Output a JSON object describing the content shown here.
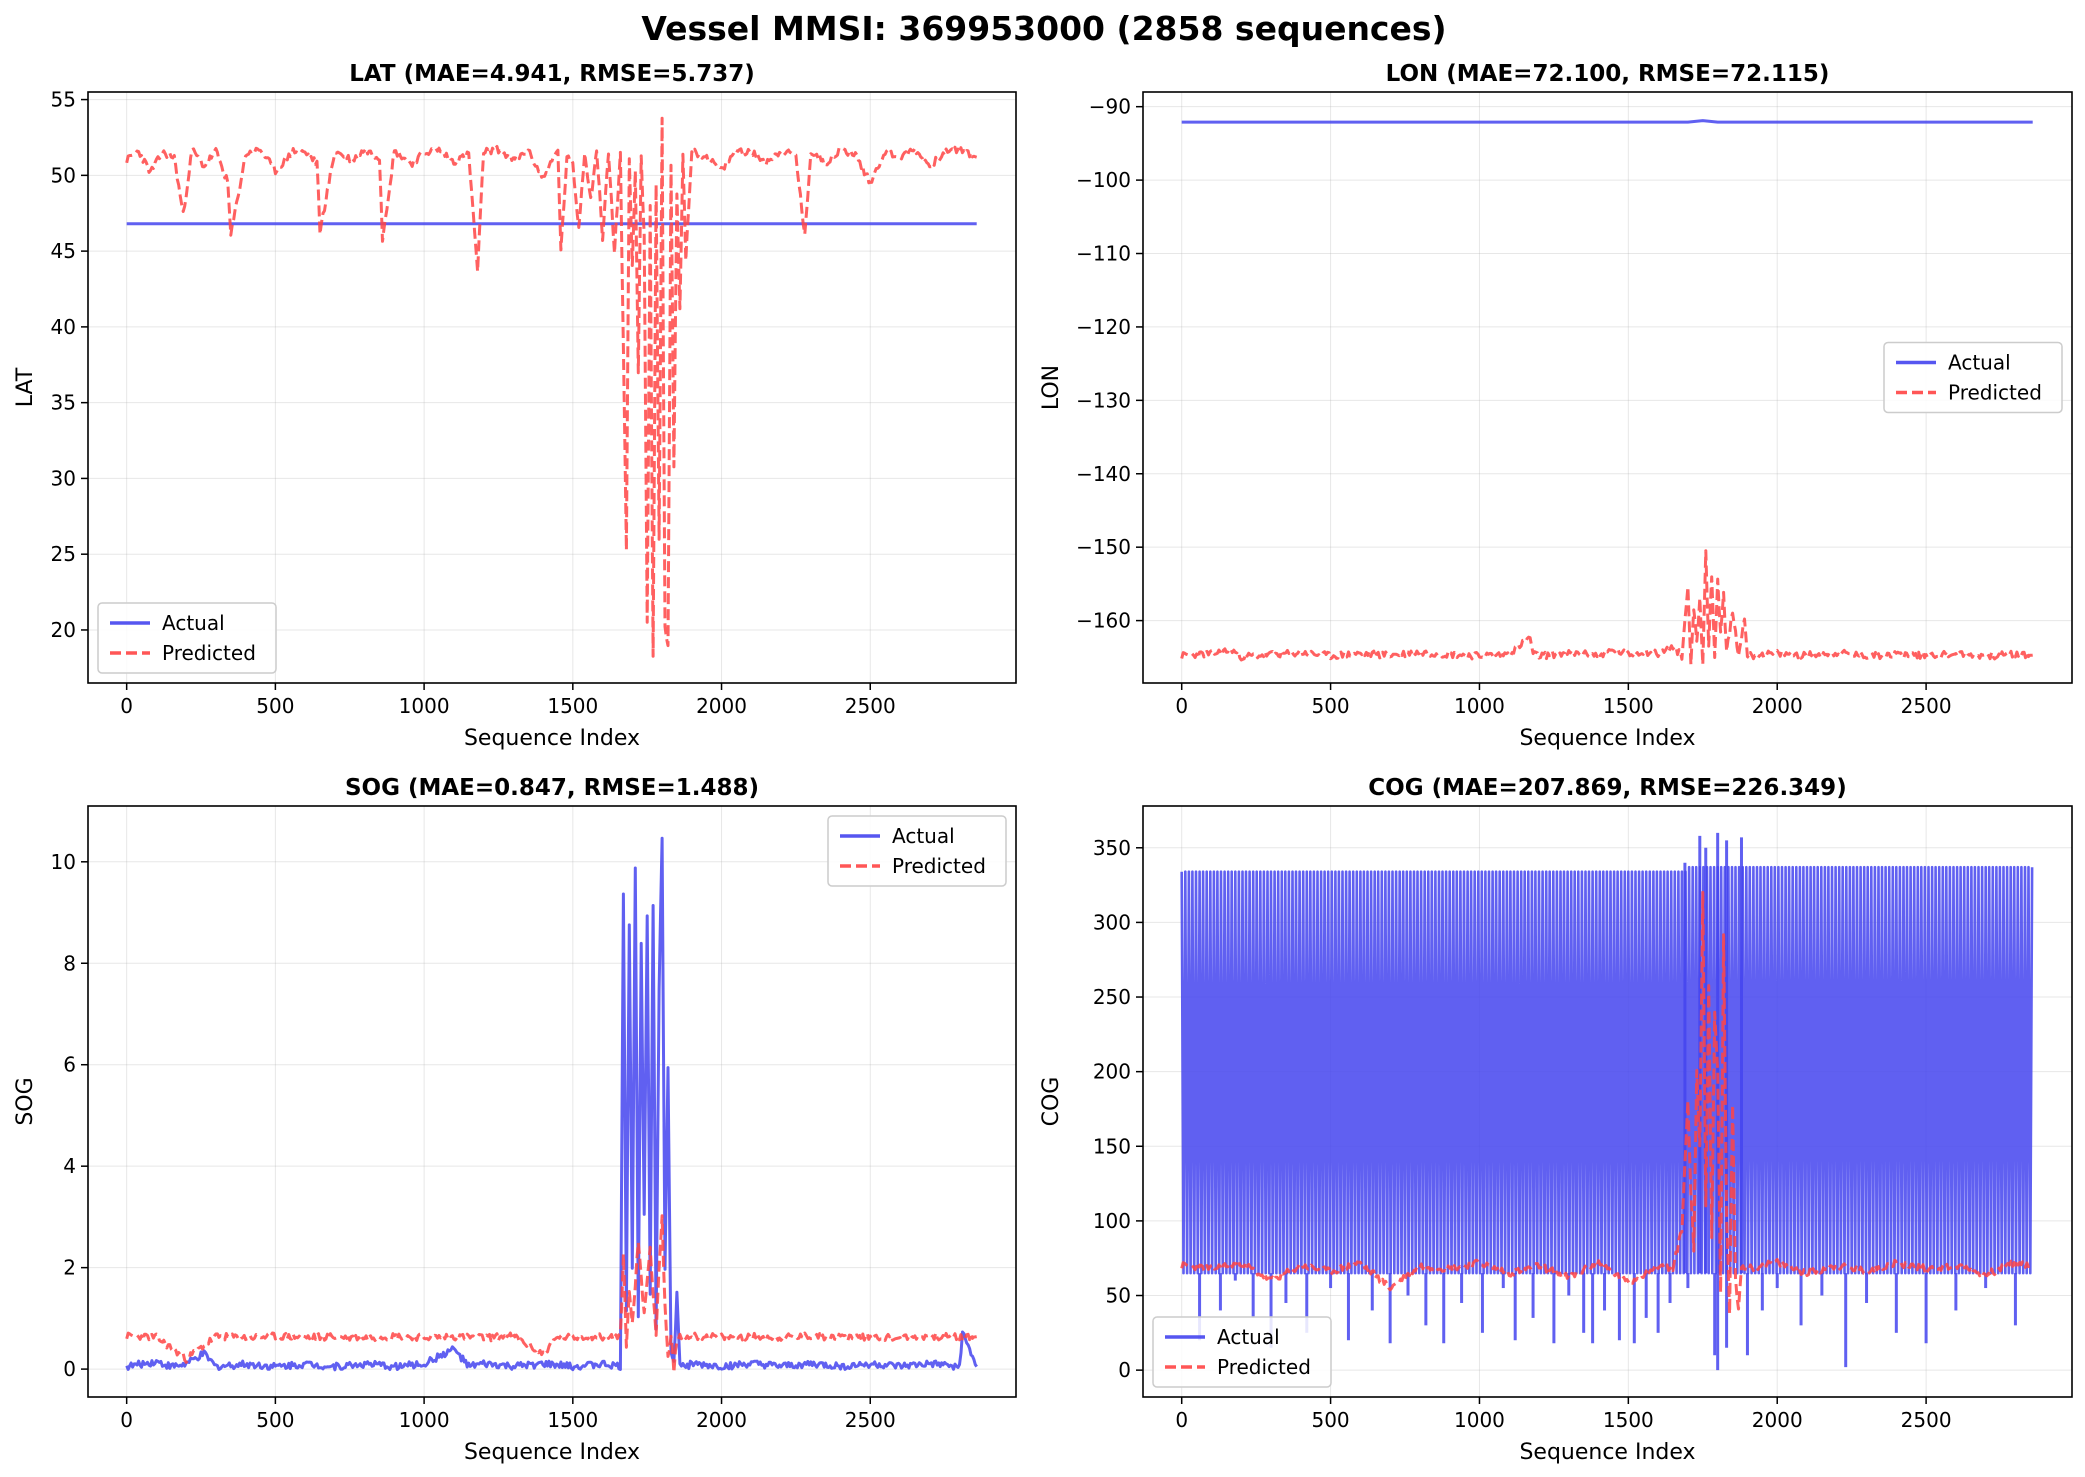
{
  "figure": {
    "suptitle": "Vessel MMSI: 369953000 (2858 sequences)"
  },
  "colors": {
    "actual": "#4444ee",
    "predicted": "#ff4444",
    "overlap": "#dd2244"
  },
  "chart_data": [
    {
      "id": "lat",
      "type": "line",
      "title": "LAT (MAE=4.941, RMSE=5.737)",
      "xlabel": "Sequence Index",
      "ylabel": "LAT",
      "xlim": [
        -130,
        2990
      ],
      "ylim": [
        16.5,
        55.5
      ],
      "xticks": [
        0,
        500,
        1000,
        1500,
        2000,
        2500
      ],
      "yticks": [
        20,
        25,
        30,
        35,
        40,
        45,
        50,
        55
      ],
      "grid": true,
      "legend": "lower-left",
      "series": [
        {
          "name": "Actual",
          "style": "solid",
          "color": "#4444ee",
          "x": [
            0,
            2858
          ],
          "y": [
            46.8,
            46.8
          ]
        },
        {
          "name": "Predicted",
          "style": "dashed",
          "color": "#ff4444",
          "x": [
            0,
            40,
            80,
            120,
            160,
            190,
            220,
            260,
            300,
            340,
            350,
            400,
            450,
            500,
            560,
            600,
            640,
            650,
            700,
            760,
            800,
            850,
            860,
            900,
            960,
            1000,
            1050,
            1100,
            1150,
            1180,
            1200,
            1250,
            1300,
            1350,
            1400,
            1450,
            1460,
            1480,
            1500,
            1520,
            1540,
            1560,
            1580,
            1600,
            1620,
            1640,
            1660,
            1680,
            1690,
            1700,
            1710,
            1720,
            1730,
            1740,
            1750,
            1760,
            1770,
            1780,
            1790,
            1800,
            1810,
            1820,
            1830,
            1840,
            1850,
            1860,
            1870,
            1880,
            1900,
            1950,
            2000,
            2050,
            2100,
            2150,
            2200,
            2250,
            2280,
            2300,
            2350,
            2400,
            2450,
            2500,
            2550,
            2600,
            2650,
            2700,
            2750,
            2800,
            2858
          ],
          "y": [
            51.0,
            51.6,
            50.2,
            51.5,
            51.2,
            47.4,
            51.7,
            50.6,
            51.6,
            49.5,
            46.0,
            51.4,
            51.7,
            50.3,
            51.6,
            51.5,
            50.8,
            46.3,
            51.6,
            51.0,
            51.7,
            51.2,
            45.8,
            51.6,
            50.8,
            51.5,
            51.7,
            50.9,
            51.4,
            43.6,
            51.6,
            51.7,
            51.0,
            51.6,
            49.8,
            51.7,
            45.0,
            51.2,
            50.7,
            46.5,
            51.6,
            48.4,
            51.7,
            45.9,
            51.5,
            44.9,
            51.3,
            25.5,
            51.0,
            44.0,
            50.5,
            37.0,
            51.2,
            46.0,
            20.5,
            48.0,
            18.5,
            49.5,
            26.0,
            53.7,
            20.0,
            18.8,
            50.5,
            31.0,
            49.0,
            41.0,
            51.3,
            44.5,
            51.6,
            51.2,
            50.3,
            51.7,
            51.5,
            50.9,
            51.6,
            51.3,
            45.9,
            51.6,
            50.8,
            51.7,
            51.4,
            49.5,
            51.6,
            51.2,
            51.7,
            50.6,
            51.5,
            51.7,
            51.2
          ]
        }
      ]
    },
    {
      "id": "lon",
      "type": "line",
      "title": "LON (MAE=72.100, RMSE=72.115)",
      "xlabel": "Sequence Index",
      "ylabel": "LON",
      "xlim": [
        -130,
        2990
      ],
      "ylim": [
        -168.5,
        -88.0
      ],
      "xticks": [
        0,
        500,
        1000,
        1500,
        2000,
        2500
      ],
      "yticks": [
        -90,
        -100,
        -110,
        -120,
        -130,
        -140,
        -150,
        -160
      ],
      "grid": true,
      "legend": "center-right",
      "series": [
        {
          "name": "Actual",
          "style": "solid",
          "color": "#4444ee",
          "x": [
            0,
            1700,
            1750,
            1800,
            2858
          ],
          "y": [
            -92.1,
            -92.1,
            -91.9,
            -92.1,
            -92.1
          ]
        },
        {
          "name": "Predicted",
          "style": "dashed",
          "color": "#ff4444",
          "x": [
            0,
            100,
            170,
            200,
            300,
            400,
            500,
            600,
            700,
            800,
            900,
            1000,
            1100,
            1170,
            1180,
            1200,
            1300,
            1400,
            1450,
            1500,
            1550,
            1600,
            1650,
            1680,
            1700,
            1710,
            1720,
            1730,
            1740,
            1750,
            1760,
            1770,
            1780,
            1790,
            1800,
            1810,
            1820,
            1830,
            1850,
            1870,
            1890,
            1900,
            2000,
            2100,
            2200,
            2300,
            2400,
            2500,
            2600,
            2700,
            2800,
            2858
          ],
          "y": [
            -164.8,
            -164.5,
            -164.0,
            -164.9,
            -164.6,
            -164.4,
            -164.8,
            -164.5,
            -164.7,
            -164.3,
            -164.6,
            -164.8,
            -164.5,
            -162.3,
            -164.6,
            -164.8,
            -164.4,
            -164.7,
            -164.0,
            -164.6,
            -164.2,
            -164.5,
            -163.6,
            -164.8,
            -155.5,
            -165.5,
            -158.5,
            -163.0,
            -157.0,
            -166.0,
            -150.5,
            -163.0,
            -153.8,
            -165.0,
            -154.5,
            -162.0,
            -156.5,
            -164.5,
            -158.5,
            -165.0,
            -159.5,
            -164.8,
            -164.5,
            -164.7,
            -164.4,
            -164.8,
            -164.6,
            -164.7,
            -164.5,
            -164.8,
            -164.6,
            -164.7
          ]
        }
      ]
    },
    {
      "id": "sog",
      "type": "line",
      "title": "SOG (MAE=0.847, RMSE=1.488)",
      "xlabel": "Sequence Index",
      "ylabel": "SOG",
      "xlim": [
        -130,
        2990
      ],
      "ylim": [
        -0.55,
        11.1
      ],
      "xticks": [
        0,
        500,
        1000,
        1500,
        2000,
        2500
      ],
      "yticks": [
        0,
        2,
        4,
        6,
        8,
        10
      ],
      "grid": true,
      "legend": "upper-right",
      "series": [
        {
          "name": "Actual",
          "style": "solid",
          "color": "#4444ee",
          "x": [
            0,
            50,
            100,
            150,
            200,
            260,
            300,
            400,
            500,
            600,
            700,
            800,
            900,
            1000,
            1100,
            1150,
            1200,
            1300,
            1400,
            1500,
            1600,
            1660,
            1670,
            1680,
            1690,
            1700,
            1710,
            1720,
            1730,
            1740,
            1750,
            1760,
            1770,
            1780,
            1790,
            1800,
            1810,
            1820,
            1830,
            1840,
            1850,
            1860,
            1870,
            1880,
            1900,
            2000,
            2100,
            2200,
            2300,
            2400,
            2500,
            2600,
            2700,
            2800,
            2810,
            2858
          ],
          "y": [
            0.05,
            0.1,
            0.15,
            0.05,
            0.1,
            0.3,
            0.05,
            0.1,
            0.05,
            0.1,
            0.05,
            0.1,
            0.05,
            0.1,
            0.4,
            0.05,
            0.1,
            0.05,
            0.1,
            0.05,
            0.1,
            0.05,
            9.3,
            1.2,
            8.8,
            2.0,
            9.9,
            1.0,
            8.4,
            3.0,
            9.0,
            1.5,
            9.2,
            0.8,
            7.5,
            10.5,
            2.0,
            6.0,
            0.3,
            0.1,
            1.5,
            0.05,
            0.1,
            0.05,
            0.1,
            0.05,
            0.1,
            0.05,
            0.1,
            0.05,
            0.1,
            0.05,
            0.1,
            0.05,
            0.7,
            0.05
          ]
        },
        {
          "name": "Predicted",
          "style": "dashed",
          "color": "#ff4444",
          "x": [
            0,
            100,
            200,
            300,
            400,
            500,
            600,
            700,
            800,
            900,
            1000,
            1100,
            1200,
            1300,
            1400,
            1450,
            1500,
            1550,
            1600,
            1660,
            1670,
            1680,
            1690,
            1700,
            1720,
            1740,
            1760,
            1780,
            1790,
            1800,
            1810,
            1820,
            1830,
            1840,
            1850,
            1900,
            2000,
            2100,
            2200,
            2300,
            2400,
            2500,
            2600,
            2700,
            2800,
            2858
          ],
          "y": [
            0.65,
            0.63,
            0.2,
            0.64,
            0.62,
            0.65,
            0.63,
            0.64,
            0.62,
            0.65,
            0.63,
            0.64,
            0.62,
            0.65,
            0.3,
            0.64,
            0.62,
            0.65,
            0.63,
            0.64,
            2.2,
            0.5,
            1.5,
            0.9,
            2.5,
            1.1,
            2.4,
            0.7,
            2.0,
            3.0,
            1.2,
            0.2,
            0.6,
            0.0,
            0.62,
            0.65,
            0.63,
            0.64,
            0.62,
            0.65,
            0.63,
            0.64,
            0.62,
            0.65,
            0.63,
            0.64
          ]
        }
      ]
    },
    {
      "id": "cog",
      "type": "line",
      "title": "COG (MAE=207.869, RMSE=226.349)",
      "xlabel": "Sequence Index",
      "ylabel": "COG",
      "xlim": [
        -130,
        2990
      ],
      "ylim": [
        -18,
        378
      ],
      "xticks": [
        0,
        500,
        1000,
        1500,
        2000,
        2500
      ],
      "yticks": [
        0,
        50,
        100,
        150,
        200,
        250,
        300,
        350
      ],
      "grid": true,
      "legend": "lower-left",
      "series": [
        {
          "name": "Actual",
          "style": "solid",
          "color": "#4444ee",
          "oscillate": {
            "low": 65,
            "high": 334,
            "band_until": 1700,
            "high_after": 337,
            "low_after": 65
          },
          "dips": [
            [
              60,
              20
            ],
            [
              130,
              40
            ],
            [
              180,
              60
            ],
            [
              240,
              35
            ],
            [
              300,
              15
            ],
            [
              350,
              45
            ],
            [
              420,
              25
            ],
            [
              500,
              55
            ],
            [
              560,
              20
            ],
            [
              640,
              40
            ],
            [
              700,
              18
            ],
            [
              760,
              50
            ],
            [
              820,
              30
            ],
            [
              880,
              18
            ],
            [
              940,
              45
            ],
            [
              1010,
              25
            ],
            [
              1080,
              55
            ],
            [
              1120,
              20
            ],
            [
              1180,
              35
            ],
            [
              1250,
              18
            ],
            [
              1300,
              50
            ],
            [
              1350,
              25
            ],
            [
              1380,
              18
            ],
            [
              1420,
              40
            ],
            [
              1470,
              20
            ],
            [
              1520,
              18
            ],
            [
              1560,
              35
            ],
            [
              1600,
              25
            ],
            [
              1640,
              45
            ],
            [
              1700,
              55
            ],
            [
              1790,
              10
            ],
            [
              1800,
              0
            ],
            [
              1830,
              15
            ],
            [
              1900,
              10
            ],
            [
              1950,
              40
            ],
            [
              2000,
              55
            ],
            [
              2080,
              30
            ],
            [
              2150,
              50
            ],
            [
              2230,
              2
            ],
            [
              2300,
              45
            ],
            [
              2400,
              25
            ],
            [
              2500,
              18
            ],
            [
              2600,
              40
            ],
            [
              2700,
              55
            ],
            [
              2800,
              30
            ]
          ],
          "spikes": [
            [
              1690,
              340
            ],
            [
              1740,
              358
            ],
            [
              1760,
              350
            ],
            [
              1800,
              360
            ],
            [
              1830,
              355
            ],
            [
              1880,
              357
            ]
          ]
        },
        {
          "name": "Predicted",
          "style": "dashed",
          "color": "#ff4444",
          "x": [
            0,
            100,
            200,
            300,
            400,
            500,
            600,
            700,
            800,
            900,
            1000,
            1100,
            1200,
            1300,
            1400,
            1500,
            1600,
            1650,
            1680,
            1700,
            1710,
            1720,
            1730,
            1740,
            1750,
            1760,
            1770,
            1780,
            1790,
            1800,
            1810,
            1820,
            1830,
            1840,
            1850,
            1860,
            1870,
            1880,
            1900,
            2000,
            2100,
            2200,
            2300,
            2400,
            2500,
            2600,
            2700,
            2800,
            2858
          ],
          "y": [
            70,
            68,
            72,
            60,
            70,
            66,
            72,
            55,
            70,
            68,
            72,
            65,
            70,
            62,
            72,
            58,
            70,
            68,
            95,
            180,
            120,
            80,
            200,
            150,
            320,
            110,
            260,
            90,
            240,
            200,
            50,
            290,
            100,
            40,
            180,
            60,
            40,
            70,
            68,
            72,
            65,
            70,
            66,
            72,
            68,
            70,
            64,
            72,
            70
          ]
        }
      ]
    }
  ]
}
